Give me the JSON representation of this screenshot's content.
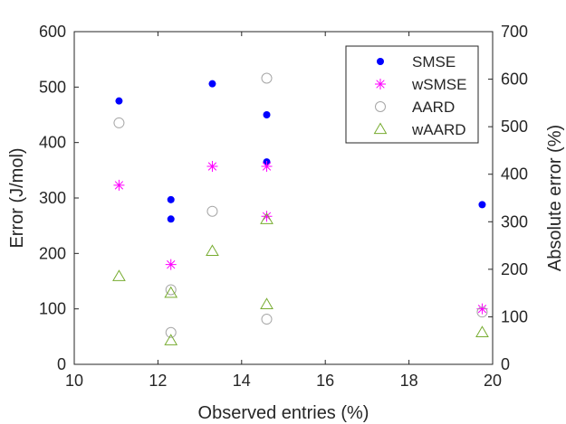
{
  "chart_data": {
    "type": "scatter",
    "title": "",
    "xlabel": "Observed entries (%)",
    "ylabel_left": "Error (J/mol)",
    "ylabel_right": "Absolute error (%)",
    "xlim": [
      10,
      20
    ],
    "ylim_left": [
      0,
      600
    ],
    "ylim_right": [
      0,
      700
    ],
    "xticks": [
      "10",
      "12",
      "14",
      "16",
      "18",
      "20"
    ],
    "yticks_left": [
      "0",
      "100",
      "200",
      "300",
      "400",
      "500",
      "600"
    ],
    "yticks_right": [
      "0",
      "100",
      "200",
      "300",
      "400",
      "500",
      "600",
      "700"
    ],
    "grid": false,
    "legend_position": "top-right",
    "series": [
      {
        "name": "SMSE",
        "axis": "left",
        "marker": "dot",
        "color": "#0000ff",
        "points": [
          [
            11.07,
            475
          ],
          [
            12.31,
            297
          ],
          [
            12.31,
            262
          ],
          [
            13.3,
            506
          ],
          [
            14.6,
            450
          ],
          [
            14.6,
            365
          ],
          [
            19.75,
            288
          ]
        ]
      },
      {
        "name": "wSMSE",
        "axis": "left",
        "marker": "asterisk",
        "color": "#ff00ff",
        "points": [
          [
            11.07,
            323
          ],
          [
            12.31,
            180
          ],
          [
            13.3,
            357
          ],
          [
            14.6,
            357
          ],
          [
            14.6,
            267
          ],
          [
            19.75,
            100
          ]
        ]
      },
      {
        "name": "AARD",
        "axis": "right",
        "marker": "circle",
        "color": "#a6a6a6",
        "points": [
          [
            11.07,
            508
          ],
          [
            12.31,
            157
          ],
          [
            12.31,
            67
          ],
          [
            13.3,
            322
          ],
          [
            14.6,
            602
          ],
          [
            14.6,
            95
          ],
          [
            19.75,
            110
          ]
        ]
      },
      {
        "name": "wAARD",
        "axis": "right",
        "marker": "triangle",
        "color": "#77ac30",
        "points": [
          [
            11.07,
            185
          ],
          [
            12.31,
            150
          ],
          [
            12.31,
            50
          ],
          [
            13.3,
            238
          ],
          [
            14.6,
            305
          ],
          [
            14.6,
            126
          ],
          [
            19.75,
            67
          ]
        ]
      }
    ]
  }
}
